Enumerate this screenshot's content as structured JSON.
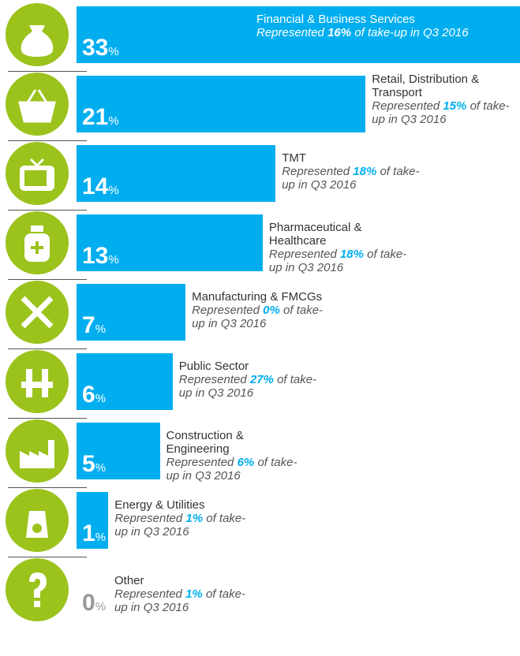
{
  "chart_data": {
    "type": "bar",
    "categories": [
      "Financial & Business Services",
      "Retail, Distribution & Transport",
      "TMT",
      "Pharmaceutical & Healthcare",
      "Manufacturing & FMCGs",
      "Public Sector",
      "Construction & Engineering",
      "Energy & Utilities",
      "Other"
    ],
    "values": [
      33,
      21,
      14,
      13,
      7,
      6,
      5,
      1,
      0
    ],
    "unit": "%",
    "color": "#00aeef",
    "represented_text": "Represented",
    "q3_values": [
      16,
      15,
      18,
      18,
      0,
      27,
      6,
      1,
      1
    ],
    "q3_value_labels": [
      "16%",
      "15%",
      "18%",
      "18%",
      "0%",
      "27%",
      "6%",
      "1%",
      "1%"
    ],
    "q3_text": "of take-up in Q3 2016"
  }
}
